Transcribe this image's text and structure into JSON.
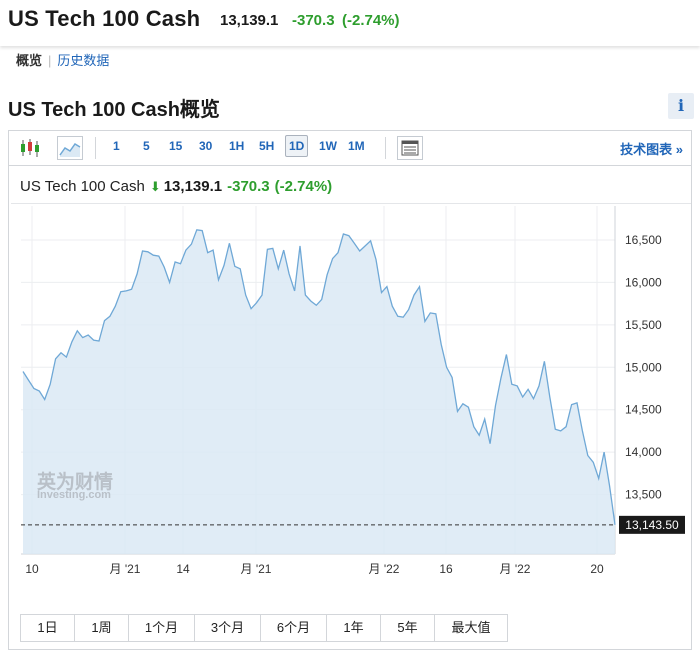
{
  "header": {
    "title": "US Tech 100 Cash",
    "price": "13,139.1",
    "change": "-370.3",
    "change_pct": "(-2.74%)"
  },
  "subnav": {
    "active": "概览",
    "link": "历史数据"
  },
  "section_title": "US Tech 100 Cash概览",
  "info_label": "i",
  "toolbar": {
    "timeframes": [
      "1",
      "5",
      "15",
      "30",
      "1H",
      "5H",
      "1D",
      "1W",
      "1M"
    ],
    "selected_timeframe": "1D",
    "tech_chart_label": "技术图表 »"
  },
  "legend": {
    "name": "US Tech 100 Cash",
    "arrow": "⬇",
    "price": "13,139.1",
    "change": "-370.3",
    "change_pct": "(-2.74%)"
  },
  "watermark": {
    "line1": "英为财情",
    "line2": "Investing.com"
  },
  "range_buttons": [
    "1日",
    "1周",
    "1个月",
    "3个月",
    "6个月",
    "1年",
    "5年",
    "最大值"
  ],
  "colors": {
    "line": "#6fa8d6",
    "area": "#dbe9f4",
    "up": "#2e9e2e",
    "link": "#2166b8"
  },
  "chart_data": {
    "type": "area",
    "title": "US Tech 100 Cash",
    "xlabel": "",
    "ylabel": "",
    "ylim": [
      12800,
      16900
    ],
    "y_ticks": [
      16500,
      16000,
      15500,
      15000,
      14500,
      14000,
      13500
    ],
    "y_tick_labels": [
      "16,500",
      "16,000",
      "15,500",
      "15,000",
      "14,500",
      "14,000",
      "13,500"
    ],
    "x_tick_labels": [
      "10",
      "月 '21",
      "14",
      "月 '21",
      "月 '22",
      "16",
      "月 '22",
      "20"
    ],
    "last_value": 13143.5,
    "last_value_label": "13,143.50",
    "grid": true,
    "legend": "top-left",
    "series": [
      {
        "values": [
          14950,
          14850,
          14750,
          14720,
          14620,
          14800,
          15100,
          15170,
          15120,
          15300,
          15430,
          15350,
          15380,
          15320,
          15310,
          15550,
          15600,
          15720,
          15890,
          15900,
          15920,
          16100,
          16370,
          16360,
          16320,
          16310,
          16180,
          16000,
          16240,
          16220,
          16380,
          16450,
          16620,
          16610,
          16350,
          16380,
          16030,
          16200,
          16460,
          16190,
          16160,
          15850,
          15690,
          15760,
          15850,
          16390,
          16400,
          16160,
          16380,
          16100,
          15900,
          16430,
          15850,
          15780,
          15730,
          15800,
          16090,
          16280,
          16350,
          16570,
          16550,
          16460,
          16370,
          16430,
          16490,
          16270,
          15880,
          15950,
          15720,
          15600,
          15590,
          15680,
          15850,
          15950,
          15540,
          15640,
          15630,
          15270,
          15000,
          14880,
          14480,
          14570,
          14530,
          14300,
          14200,
          14390,
          14100,
          14550,
          14870,
          15150,
          14800,
          14780,
          14650,
          14740,
          14630,
          14780,
          15070,
          14650,
          14270,
          14250,
          14300,
          14560,
          14580,
          14250,
          13960,
          13880,
          13690,
          14000,
          13600,
          13143.5
        ]
      }
    ]
  }
}
